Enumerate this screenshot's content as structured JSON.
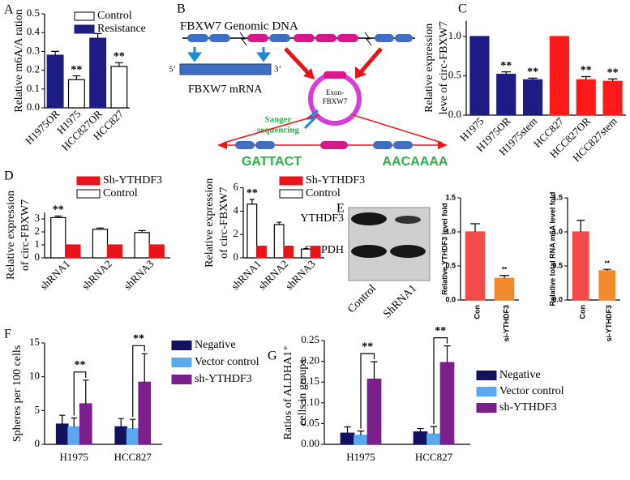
{
  "chart_data": [
    {
      "type": "bar",
      "panel": "A",
      "ylabel": "Relative m6A/A ration",
      "categories": [
        "H1975OR",
        "H1975",
        "HCC827OR",
        "HCC827"
      ],
      "series": [
        {
          "name": "Control",
          "color": "#ffffff",
          "values": [
            null,
            0.15,
            null,
            0.22
          ],
          "errors": [
            null,
            0.02,
            null,
            0.02
          ],
          "value_annotations": [
            null,
            "**",
            null,
            "**"
          ]
        },
        {
          "name": "Resistance",
          "color": "#1c1c84",
          "values": [
            0.28,
            null,
            0.37,
            null
          ],
          "errors": [
            0.02,
            null,
            0.025,
            null
          ]
        }
      ],
      "ylim": [
        0,
        0.5
      ],
      "yticks": [
        {
          "value": 0,
          "label": "0.0"
        },
        0.1,
        0.2,
        0.3,
        0.4,
        0.5
      ]
    },
    {
      "type": "bar",
      "panel": "C",
      "ylabel": [
        "Relative expression",
        "leve of circ-FBXW7"
      ],
      "categories": [
        "H1975",
        "H1975OR",
        "H1975stem",
        "HCC827",
        "HCC827OR",
        "HCC827stem"
      ],
      "values": [
        1.0,
        0.52,
        0.45,
        1.0,
        0.45,
        0.43
      ],
      "errors": [
        0,
        0.03,
        0.02,
        0,
        0.04,
        0.03
      ],
      "colors": [
        "#1c1c84",
        "#1c1c84",
        "#1c1c84",
        "#ff1a1a",
        "#ff1a1a",
        "#ff1a1a"
      ],
      "value_annotations": [
        null,
        "**",
        "**",
        null,
        "**",
        "**"
      ],
      "ylim": [
        0,
        1.2
      ],
      "yticks": [
        {
          "value": 0,
          "label": "0.0"
        },
        0.5,
        {
          "value": 1,
          "label": "1.0"
        }
      ]
    },
    {
      "type": "bar",
      "panel": "D",
      "ylabel": [
        "Relative expression",
        "of circ-FBXW7"
      ],
      "categories": [
        "shRNA1",
        "shRNA2",
        "shRNA3"
      ],
      "series": [
        {
          "name": "Control",
          "color": "#ffffff",
          "values": [
            3.1,
            2.2,
            1.95
          ],
          "errors": [
            0.12,
            0.1,
            0.15
          ],
          "value_annotations": [
            "**",
            null,
            null
          ]
        },
        {
          "name": "Sh-YTHDF3",
          "color": "#e8141a",
          "values": [
            1,
            1,
            1
          ]
        }
      ],
      "ylim": [
        0,
        3.5
      ],
      "yticks": [
        0,
        1,
        2,
        3
      ]
    },
    {
      "type": "bar",
      "ylabel": [
        "Relative expression",
        "of circ-FBXW7"
      ],
      "categories": [
        "shRNA1",
        "shRNA2",
        "shRNA3"
      ],
      "series": [
        {
          "name": "Control",
          "color": "#ffffff",
          "values": [
            4.6,
            2.85,
            0.75
          ],
          "errors": [
            0.4,
            0.2,
            0.05
          ],
          "value_annotations": [
            "**",
            null,
            null
          ]
        },
        {
          "name": "Sh-YTHDF3",
          "color": "#e8141a",
          "values": [
            1,
            1,
            1
          ]
        }
      ],
      "ylim": [
        0,
        6
      ],
      "yticks": [
        0,
        2,
        4,
        6
      ]
    },
    {
      "type": "bar",
      "ylabel": "Relative YTHDF3 level fold",
      "categories": [
        "Con",
        "si-YTHDF3"
      ],
      "values": [
        1.0,
        0.32
      ],
      "errors": [
        0.12,
        0.04
      ],
      "colors": [
        "#f44a4a",
        "#f08a2d"
      ],
      "value_annotations": [
        null,
        "**"
      ],
      "ylim": [
        0,
        1.5
      ],
      "yticks": [
        {
          "value": 0,
          "label": "0.0"
        },
        0.5,
        {
          "value": 1,
          "label": "1.0"
        },
        1.5
      ]
    },
    {
      "type": "bar",
      "ylabel": "Relative total RNA m6A level fold",
      "categories": [
        "Con",
        "si-YTHDF3"
      ],
      "values": [
        1.0,
        0.43
      ],
      "errors": [
        0.17,
        0.02
      ],
      "colors": [
        "#f44a4a",
        "#f08a2d"
      ],
      "value_annotations": [
        null,
        "**"
      ],
      "ylim": [
        0,
        1.5
      ],
      "yticks": [
        {
          "value": 0,
          "label": "0.0"
        },
        0.5,
        {
          "value": 1,
          "label": "1.0"
        },
        1.5
      ]
    },
    {
      "type": "bar",
      "panel": "F",
      "ylabel": "Spheres per 100 cells",
      "categories": [
        "H1975",
        "HCC827"
      ],
      "series": [
        {
          "name": "Negative",
          "color": "#12125e",
          "values": [
            3.0,
            2.6
          ],
          "errors": [
            1.3,
            1.2
          ]
        },
        {
          "name": "Vector control",
          "color": "#5aa9ee",
          "values": [
            2.6,
            2.3
          ],
          "errors": [
            1.3,
            1.4
          ]
        },
        {
          "name": "sh-YTHDF3",
          "color": "#7a1f8c",
          "values": [
            6.0,
            9.2
          ],
          "errors": [
            3.5,
            4.2
          ],
          "value_annotations": [
            "**",
            "**"
          ]
        }
      ],
      "ylim": [
        0,
        15
      ],
      "yticks": [
        0,
        5,
        10,
        15
      ]
    },
    {
      "type": "bar",
      "panel": "G",
      "ylabel": [
        "Ratios of ALDHA1⁺",
        "cells in groups"
      ],
      "categories": [
        "H1975",
        "HCC827"
      ],
      "series": [
        {
          "name": "Negative",
          "color": "#12125e",
          "values": [
            0.027,
            0.03
          ],
          "errors": [
            0.015,
            0.008
          ]
        },
        {
          "name": "Vector control",
          "color": "#5aa9ee",
          "values": [
            0.022,
            0.025
          ],
          "errors": [
            0.01,
            0.018
          ]
        },
        {
          "name": "sh-YTHDF3",
          "color": "#7a1f8c",
          "values": [
            0.157,
            0.197
          ],
          "errors": [
            0.042,
            0.04
          ],
          "value_annotations": [
            "**",
            "**"
          ]
        }
      ],
      "ylim": [
        0,
        0.25
      ],
      "yticks": [
        {
          "value": 0,
          "label": "0.00"
        },
        {
          "value": 0.05,
          "label": "0.05"
        },
        {
          "value": 0.1,
          "label": "0.10"
        },
        {
          "value": 0.15,
          "label": "0.15"
        },
        {
          "value": 0.2,
          "label": "0.20"
        },
        {
          "value": 0.25,
          "label": "0.25"
        }
      ]
    }
  ],
  "diagram": {
    "panel": "B",
    "genomic_label": "FBXW7 Genomic DNA",
    "mrna_5": "5’",
    "mrna_3": "3’",
    "mrna_label": "FBXW7 mRNA",
    "exon_label": [
      "Exon-",
      "FBXW7"
    ],
    "sanger_label": [
      "Sanger",
      "sequencing"
    ],
    "seq_left": "GATTACT",
    "seq_right": "AACAAAA"
  },
  "blot": {
    "panel": "E",
    "rows": [
      "YTHDF3",
      "GAPDH"
    ],
    "columns": [
      "Control",
      "ShRNA1"
    ]
  }
}
